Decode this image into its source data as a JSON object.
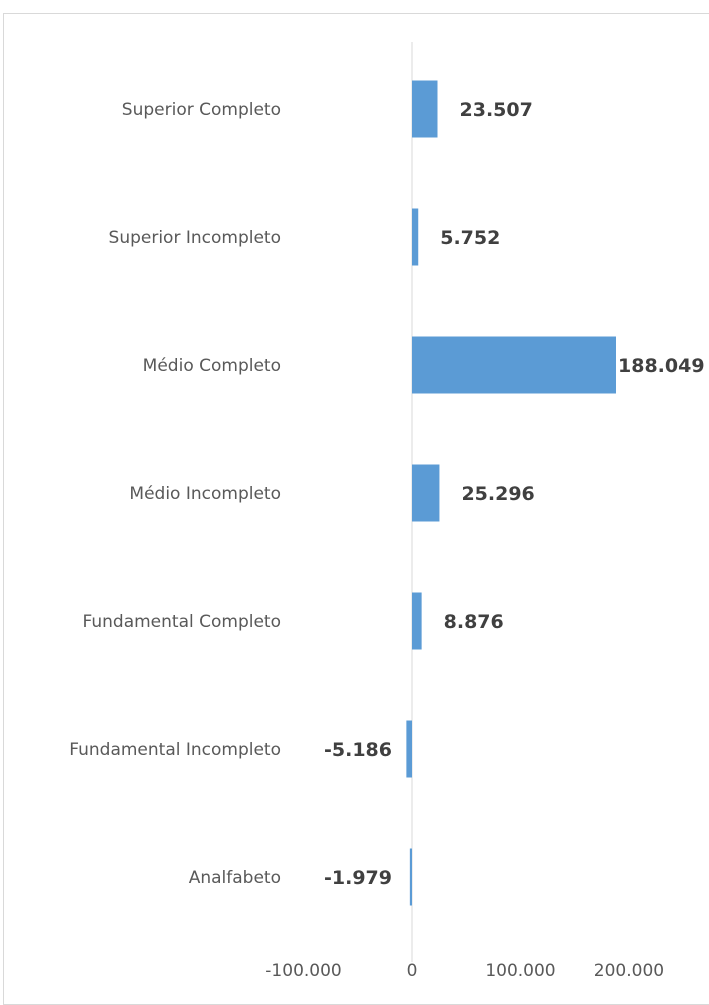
{
  "chart_data": {
    "type": "bar",
    "orientation": "horizontal",
    "categories": [
      "Superior Completo",
      "Superior Incompleto",
      "Médio Completo",
      "Médio Incompleto",
      "Fundamental Completo",
      "Fundamental Incompleto",
      "Analfabeto"
    ],
    "values": [
      23507,
      5752,
      188049,
      25296,
      8876,
      -5186,
      -1979
    ],
    "data_labels": [
      "23.507",
      "5.752",
      "188.049",
      "25.296",
      "8.876",
      "-5.186",
      "-1.979"
    ],
    "xlim": [
      -100000,
      200000
    ],
    "x_ticks": [
      -100000,
      0,
      100000,
      200000
    ],
    "x_tick_labels": [
      "-100.000",
      "0",
      "100.000",
      "200.000"
    ],
    "bar_color": "#5b9bd5",
    "axis_color": "#d9d9d9",
    "grid": false,
    "legend": "none"
  }
}
